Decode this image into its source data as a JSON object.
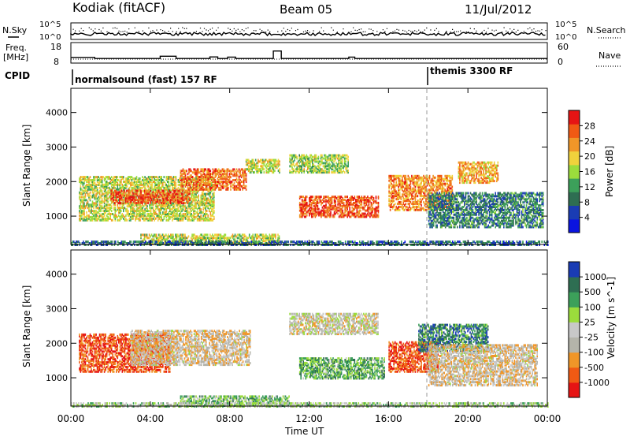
{
  "header": {
    "station": "Kodiak (fitACF)",
    "beam": "Beam 05",
    "date": "11/Jul/2012"
  },
  "panel_labels": {
    "nsky": "N.Sky",
    "freq_line1": "Freq.",
    "freq_line2": "[MHz]",
    "cpid": "CPID",
    "nsearch": "N.Search",
    "nave": "Nave",
    "nsky_top": "10^5",
    "nsky_bottom": "10^0",
    "freq_top": "18",
    "freq_bottom": "8",
    "nave_top": "60",
    "nave_bottom": "0"
  },
  "cpid_segments": [
    {
      "label": "normalsound (fast) 157 RF",
      "start_hour": 0,
      "end_hour": 18
    },
    {
      "label": "themis 3300 RF",
      "start_hour": 18,
      "end_hour": 24
    }
  ],
  "colors": {
    "power_scale": [
      "#0a14e0",
      "#1a3cb4",
      "#2e6e52",
      "#3ca05a",
      "#9bdc3c",
      "#f0d23c",
      "#f09628",
      "#f05a14",
      "#e61414"
    ],
    "velocity_scale": [
      "#e61414",
      "#f05a14",
      "#f09628",
      "#b4b4aa",
      "#c8c8c8",
      "#9bdc3c",
      "#3ca05a",
      "#2e6e52",
      "#1a3cb4"
    ]
  },
  "chart_data": [
    {
      "type": "heatmap",
      "name": "power",
      "xlabel": "Time UT",
      "ylabel": "Slant Range [km]",
      "colorbar_label": "Power [dB]",
      "colorbar_ticks": [
        "4",
        "8",
        "12",
        "16",
        "20",
        "24",
        "28"
      ],
      "xlim_hours": [
        0,
        24
      ],
      "ylim_km": [
        180,
        4700
      ],
      "x_ticks": [
        "00:00",
        "04:00",
        "08:00",
        "12:00",
        "16:00",
        "20:00",
        "00:00"
      ],
      "y_ticks": [
        1000,
        2000,
        3000,
        4000
      ],
      "grid": false,
      "regions": [
        {
          "t0": 0.4,
          "t1": 7.2,
          "r0": 900,
          "r1": 2200,
          "level": 0.55
        },
        {
          "t0": 2.0,
          "t1": 6.0,
          "r0": 1400,
          "r1": 1800,
          "level": 0.85
        },
        {
          "t0": 5.5,
          "t1": 8.8,
          "r0": 1800,
          "r1": 2400,
          "level": 0.8
        },
        {
          "t0": 8.8,
          "t1": 10.5,
          "r0": 2300,
          "r1": 2700,
          "level": 0.55
        },
        {
          "t0": 11.0,
          "t1": 14.0,
          "r0": 2300,
          "r1": 2800,
          "level": 0.5
        },
        {
          "t0": 11.5,
          "t1": 15.5,
          "r0": 1000,
          "r1": 1600,
          "level": 0.85
        },
        {
          "t0": 16.0,
          "t1": 19.2,
          "r0": 1200,
          "r1": 2200,
          "level": 0.75
        },
        {
          "t0": 18.0,
          "t1": 23.8,
          "r0": 700,
          "r1": 1700,
          "level": 0.3
        },
        {
          "t0": 19.5,
          "t1": 21.5,
          "r0": 2000,
          "r1": 2600,
          "level": 0.7
        },
        {
          "t0": 3.5,
          "t1": 10.5,
          "r0": 200,
          "r1": 500,
          "level": 0.55
        },
        {
          "t0": 0.0,
          "t1": 24.0,
          "r0": 180,
          "r1": 300,
          "level": 0.25
        }
      ]
    },
    {
      "type": "heatmap",
      "name": "velocity",
      "xlabel": "Time UT",
      "ylabel": "Slant Range [km]",
      "colorbar_label": "Velocity [m s^-1]",
      "colorbar_ticks": [
        "-1000",
        "-500",
        "-100",
        "-25",
        "25",
        "100",
        "500",
        "1000"
      ],
      "xlim_hours": [
        0,
        24
      ],
      "ylim_km": [
        180,
        4700
      ],
      "x_ticks": [
        "00:00",
        "04:00",
        "08:00",
        "12:00",
        "16:00",
        "20:00",
        "00:00"
      ],
      "y_ticks": [
        1000,
        2000,
        3000,
        4000
      ],
      "grid": false,
      "regions": [
        {
          "t0": 0.4,
          "t1": 5.0,
          "r0": 1200,
          "r1": 2300,
          "level": 0.15
        },
        {
          "t0": 3.0,
          "t1": 9.0,
          "r0": 1400,
          "r1": 2400,
          "level": 0.4
        },
        {
          "t0": 11.0,
          "t1": 15.5,
          "r0": 2300,
          "r1": 2900,
          "level": 0.45
        },
        {
          "t0": 11.5,
          "t1": 15.8,
          "r0": 1000,
          "r1": 1600,
          "level": 0.7
        },
        {
          "t0": 16.0,
          "t1": 18.5,
          "r0": 1200,
          "r1": 2100,
          "level": 0.15
        },
        {
          "t0": 17.5,
          "t1": 21.0,
          "r0": 1800,
          "r1": 2600,
          "level": 0.8
        },
        {
          "t0": 18.0,
          "t1": 23.5,
          "r0": 800,
          "r1": 2000,
          "level": 0.4
        },
        {
          "t0": 5.5,
          "t1": 11.0,
          "r0": 200,
          "r1": 500,
          "level": 0.65
        },
        {
          "t0": 0.0,
          "t1": 24.0,
          "r0": 180,
          "r1": 300,
          "level": 0.55
        }
      ]
    },
    {
      "type": "line",
      "name": "noise",
      "ylabel": "N.Sky",
      "y2label": "N.Search",
      "ylim": [
        "10^0",
        "10^5"
      ]
    },
    {
      "type": "line",
      "name": "frequency",
      "ylabel": "Freq. [MHz]",
      "ylim_mhz": [
        8,
        18
      ],
      "y2label": "Nave",
      "y2lim": [
        0,
        60
      ],
      "x_hours": [
        0,
        1.2,
        4.5,
        5.3,
        7.0,
        7.4,
        7.9,
        8.3,
        10.2,
        10.6,
        14.0,
        14.3,
        18.0,
        24.0
      ],
      "values_mhz": [
        10.8,
        10.2,
        11.5,
        10.2,
        11.1,
        10.2,
        11.0,
        10.2,
        14.5,
        10.2,
        11.0,
        10.2,
        10.2,
        10.2
      ]
    }
  ]
}
